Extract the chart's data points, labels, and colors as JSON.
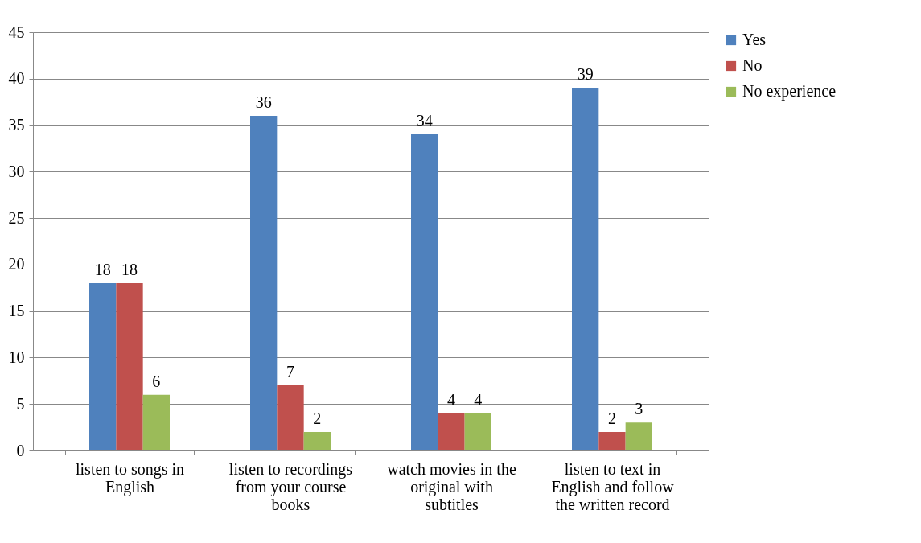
{
  "chart_data": {
    "type": "bar",
    "categories": [
      "listen to songs in English",
      "listen to recordings from your course books",
      "watch movies in the original with subtitles",
      "listen to text in English and follow the written record"
    ],
    "series": [
      {
        "name": "Yes",
        "color": "#4f81bd",
        "values": [
          18,
          36,
          34,
          39
        ]
      },
      {
        "name": "No",
        "color": "#c0504d",
        "values": [
          18,
          7,
          4,
          2
        ]
      },
      {
        "name": "No experience",
        "color": "#9bbb59",
        "values": [
          6,
          2,
          4,
          3
        ]
      }
    ],
    "ylim": [
      0,
      45
    ],
    "yticks": [
      0,
      5,
      10,
      15,
      20,
      25,
      30,
      35,
      40,
      45
    ],
    "grid": "y",
    "legend": "right",
    "data_labels": true
  }
}
